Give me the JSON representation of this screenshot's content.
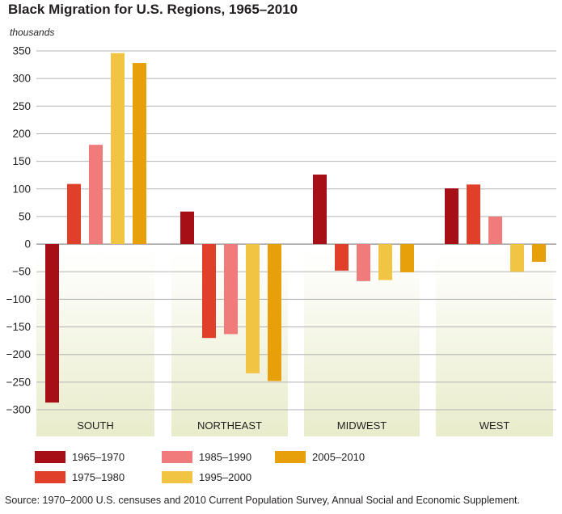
{
  "chart_data": {
    "type": "bar",
    "title": "Black Migration for U.S. Regions, 1965–2010",
    "unit_label": "thousands",
    "categories": [
      "SOUTH",
      "NORTHEAST",
      "MIDWEST",
      "WEST"
    ],
    "series": [
      {
        "name": "1965–1970",
        "color": "#a50f15",
        "values": [
          -287,
          59,
          126,
          101
        ]
      },
      {
        "name": "1975–1980",
        "color": "#e0402a",
        "values": [
          109,
          -170,
          -48,
          108
        ]
      },
      {
        "name": "1985–1990",
        "color": "#f07b7b",
        "values": [
          180,
          -163,
          -67,
          50
        ]
      },
      {
        "name": "1995–2000",
        "color": "#f2c443",
        "values": [
          346,
          -234,
          -65,
          -50
        ]
      },
      {
        "name": "2005–2010",
        "color": "#e8a00a",
        "values": [
          328,
          -248,
          -51,
          -32
        ]
      }
    ],
    "ylim": [
      -300,
      350
    ],
    "yticks": [
      350,
      300,
      250,
      200,
      150,
      100,
      50,
      0,
      -50,
      -100,
      -150,
      -200,
      -250,
      -300
    ],
    "grid": true,
    "legend_position": "bottom",
    "source": "Source: 1970–2000 U.S. censuses and 2010 Current Population Survey, Annual Social and Economic Supplement."
  }
}
